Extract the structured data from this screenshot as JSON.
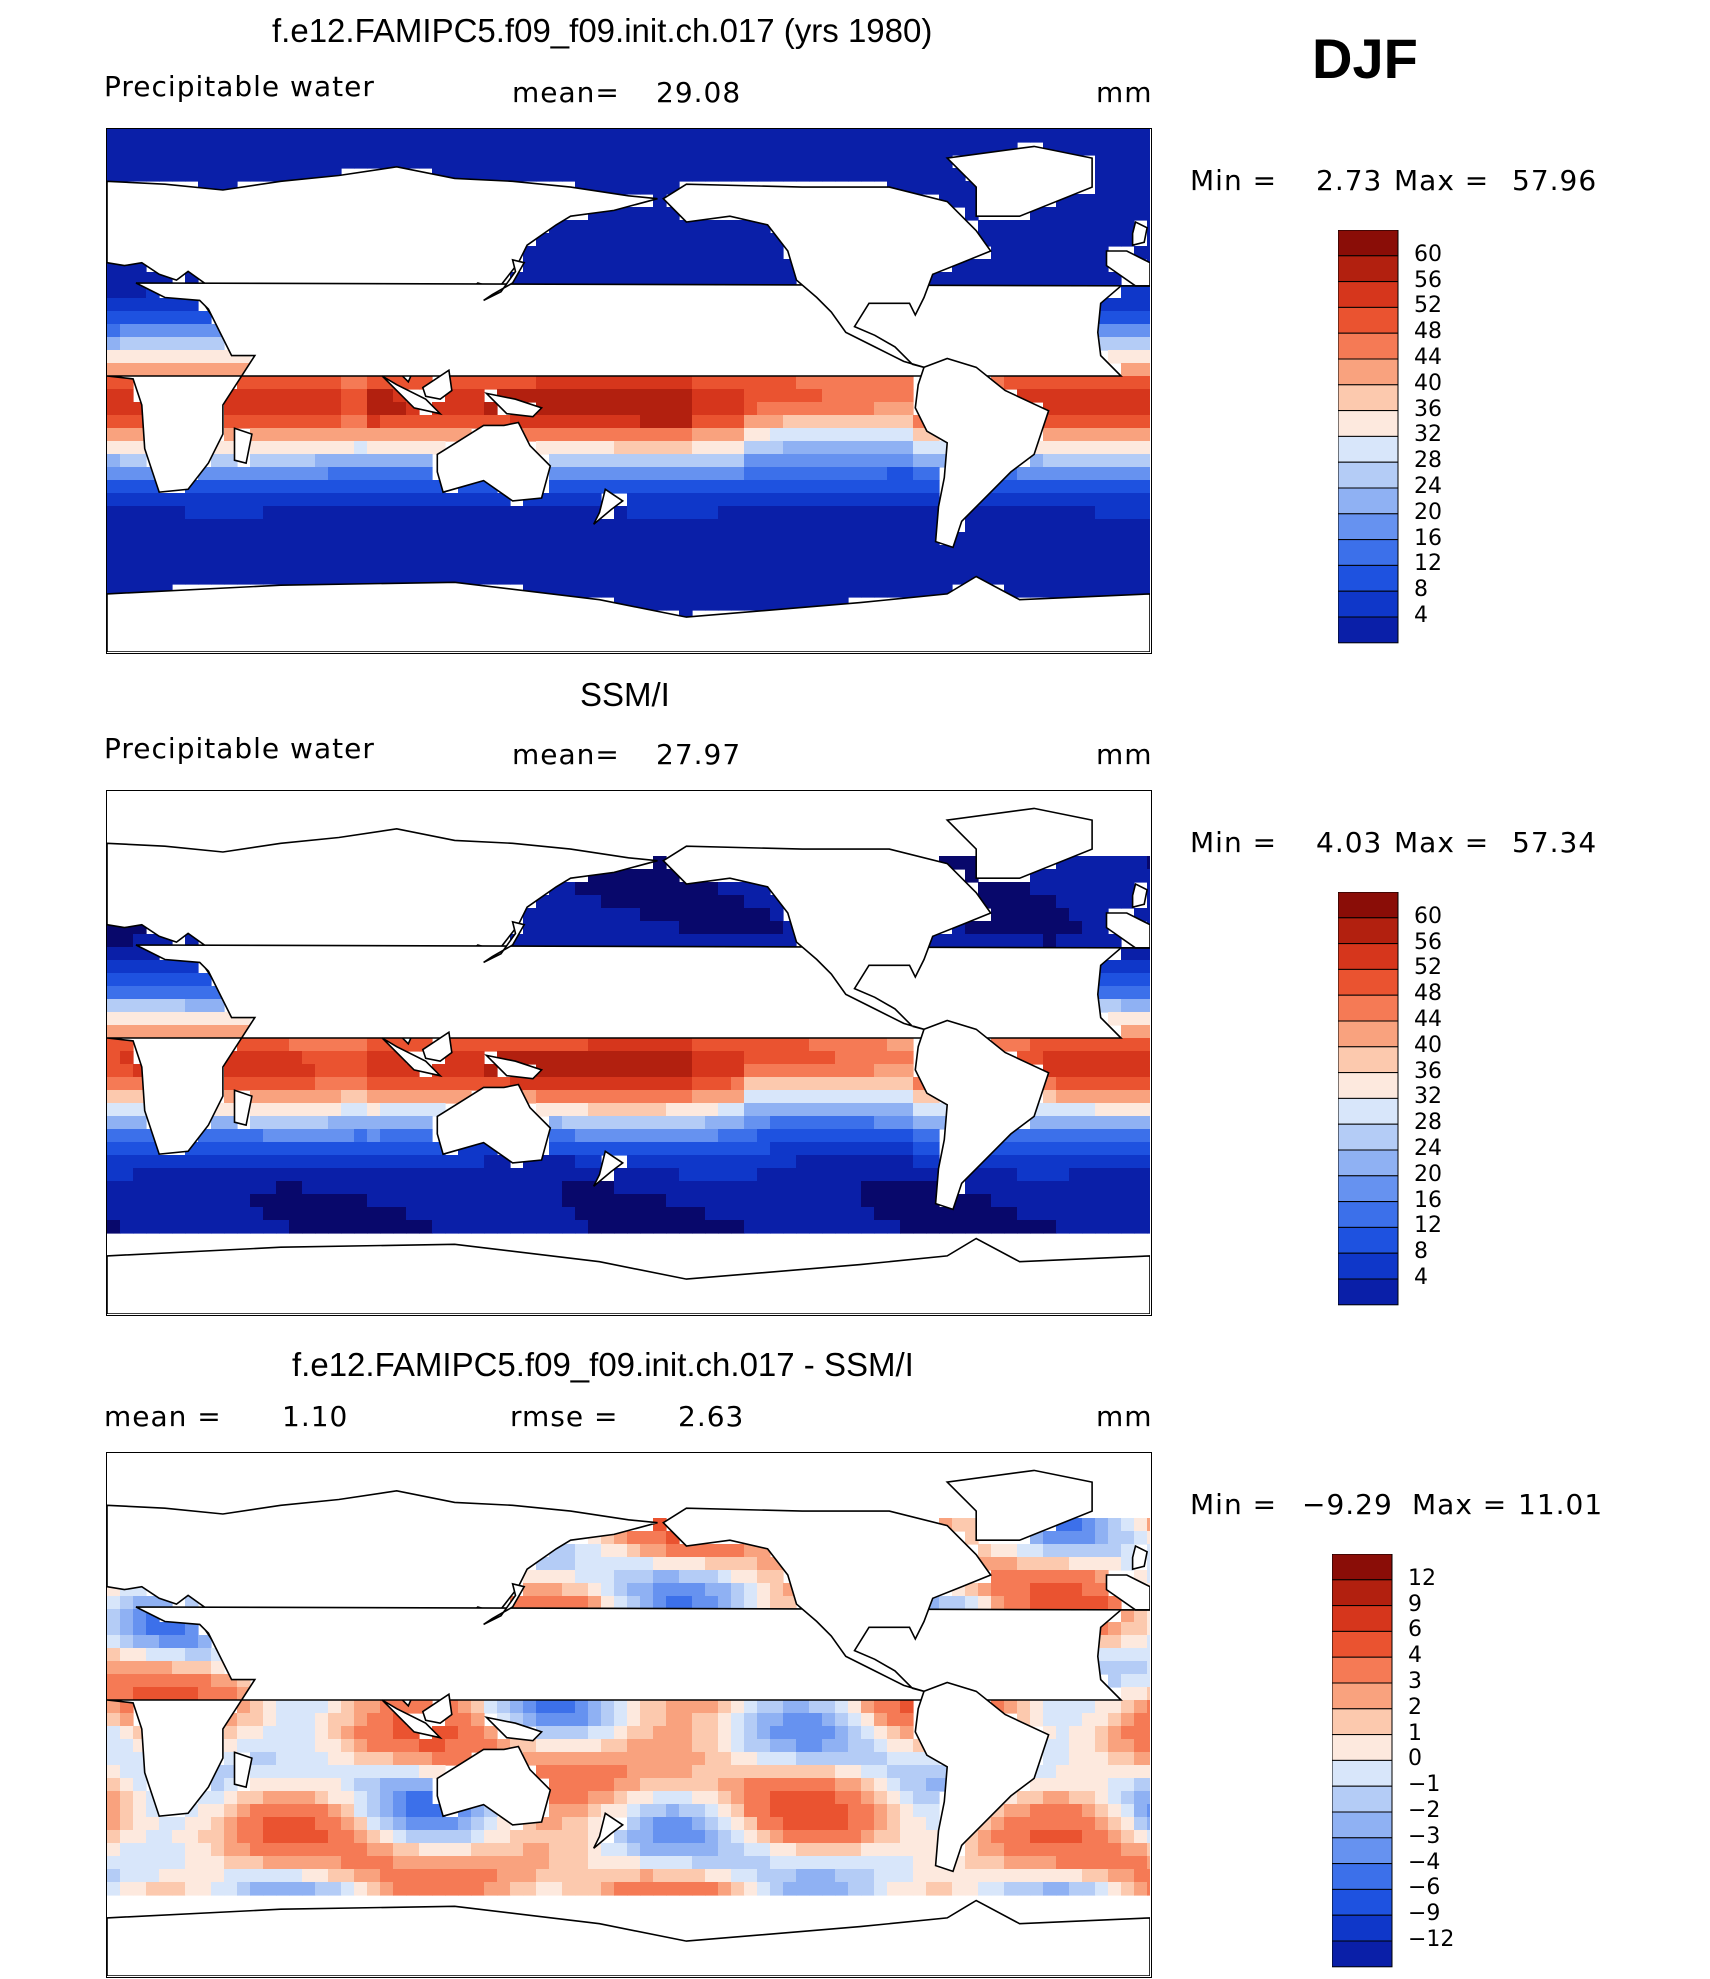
{
  "season": "DJF",
  "palettes": {
    "full": [
      "#08086b",
      "#0a1fa8",
      "#0f37c9",
      "#1e52e0",
      "#3c70ea",
      "#6692f0",
      "#8fb1f3",
      "#b4ccf6",
      "#d8e6fa",
      "#fde9de",
      "#fcc9ae",
      "#f9a27e",
      "#f57a55",
      "#ea5330",
      "#d6361c",
      "#b2200f",
      "#8a0d07"
    ],
    "diff": [
      "#08086b",
      "#0a1fa8",
      "#0f37c9",
      "#1e52e0",
      "#3c70ea",
      "#6692f0",
      "#8fb1f3",
      "#b4ccf6",
      "#d8e6fa",
      "#fde9de",
      "#fcc9ae",
      "#f9a27e",
      "#f57a55",
      "#ea5330",
      "#d6361c",
      "#b2200f",
      "#8a0d07"
    ]
  },
  "chart_data": [
    {
      "type": "heatmap",
      "title": "f.e12.FAMIPC5.f09_f09.init.ch.017 (yrs 1980)",
      "variable": "Precipitable water",
      "stat1_label": "mean=",
      "stat1_value": "29.08",
      "units": "mm",
      "min_label": "Min =",
      "min_value": "2.73",
      "max_label": "Max =",
      "max_value": "57.96",
      "levels": [
        "60",
        "56",
        "52",
        "48",
        "44",
        "40",
        "36",
        "32",
        "28",
        "24",
        "20",
        "16",
        "12",
        "8",
        "4"
      ]
    },
    {
      "type": "heatmap",
      "title": "SSM/I",
      "variable": "Precipitable water",
      "stat1_label": "mean=",
      "stat1_value": "27.97",
      "units": "mm",
      "min_label": "Min =",
      "min_value": "4.03",
      "max_label": "Max =",
      "max_value": "57.34",
      "levels": [
        "60",
        "56",
        "52",
        "48",
        "44",
        "40",
        "36",
        "32",
        "28",
        "24",
        "20",
        "16",
        "12",
        "8",
        "4"
      ]
    },
    {
      "type": "heatmap",
      "title": "f.e12.FAMIPC5.f09_f09.init.ch.017 - SSM/I",
      "stat1_label": "mean =",
      "stat1_value": "1.10",
      "stat2_label": "rmse =",
      "stat2_value": "2.63",
      "units": "mm",
      "min_label": "Min =",
      "min_value": "−9.29",
      "max_label": "Max =",
      "max_value": "11.01",
      "levels": [
        "12",
        "9",
        "6",
        "4",
        "3",
        "2",
        "1",
        "0",
        "−1",
        "−2",
        "−3",
        "−4",
        "−6",
        "−9",
        "−12"
      ]
    }
  ]
}
